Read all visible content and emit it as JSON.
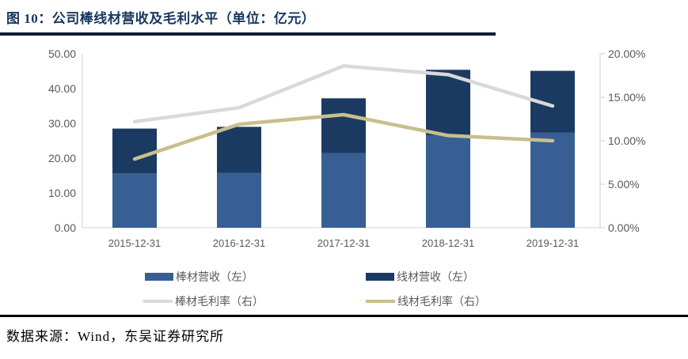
{
  "header": {
    "title": "图 10：公司棒线材营收及毛利水平（单位：亿元）"
  },
  "footer": {
    "source": "数据来源：Wind，东吴证券研究所"
  },
  "colors": {
    "title_text": "#17375E",
    "title_rule": "#0D1B35",
    "footer_rule": "#000000",
    "axis_text": "#595959",
    "axis_line": "#D9D9D9",
    "bar_rod_revenue": "#375F93",
    "wire_rod_revenue": "#1B3A62",
    "bar_rod_margin_line": "#D9D9D9",
    "wire_rod_margin_line": "#C9BE8C"
  },
  "chart_data": {
    "type": "bar",
    "subtype": "stacked bars on left axis combined with lines on right axis",
    "title": "公司棒线材营收及毛利水平（单位：亿元）",
    "categories": [
      "2015-12-31",
      "2016-12-31",
      "2017-12-31",
      "2018-12-31",
      "2019-12-31"
    ],
    "bar_series": [
      {
        "key": "bar-rod-revenue",
        "name": "棒材营收（左）",
        "axis": "left",
        "color": "#375F93",
        "values": [
          15.6,
          15.8,
          21.4,
          26.6,
          27.3
        ]
      },
      {
        "key": "wire-rod-revenue",
        "name": "线材营收（左）",
        "axis": "left",
        "color": "#1B3A62",
        "values": [
          12.9,
          13.2,
          15.8,
          18.8,
          17.8
        ]
      }
    ],
    "line_series": [
      {
        "key": "bar-rod-margin",
        "name": "棒材毛利率（右）",
        "axis": "right",
        "color": "#D9D9D9",
        "values": [
          12.2,
          13.8,
          18.6,
          17.6,
          14.0
        ]
      },
      {
        "key": "wire-rod-margin",
        "name": "线材毛利率（右）",
        "axis": "right",
        "color": "#C9BE8C",
        "values": [
          7.9,
          11.9,
          13.0,
          10.6,
          10.0
        ]
      }
    ],
    "left_axis": {
      "min": 0,
      "max": 50,
      "tick_labels": [
        "0.00",
        "10.00",
        "20.00",
        "30.00",
        "40.00",
        "50.00"
      ]
    },
    "right_axis": {
      "min": 0,
      "max": 20,
      "tick_labels": [
        "0.00%",
        "5.00%",
        "10.00%",
        "15.00%",
        "20.00%"
      ]
    },
    "grid": false,
    "legend_position": "bottom"
  }
}
